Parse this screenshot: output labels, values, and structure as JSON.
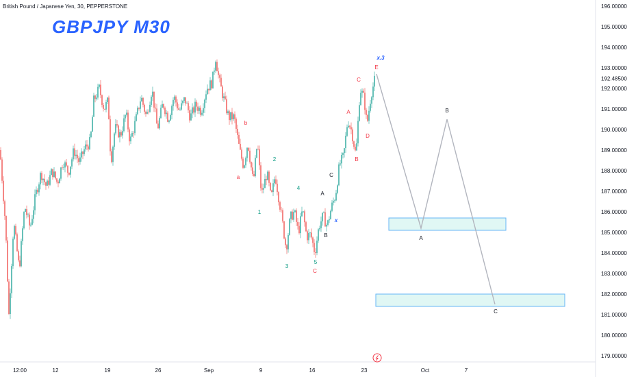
{
  "header": {
    "symbol_line": "British Pound / Japanese Yen, 30, PEPPERSTONE"
  },
  "title": "GBPJPY M30",
  "colors": {
    "up": "#26a69a",
    "down": "#ef5350",
    "projection": "#b2b5be",
    "zone_fill": "#e0f7f4",
    "zone_stroke": "#64b5f6",
    "label_red": "#f23645",
    "label_green": "#089981",
    "label_blue": "#2962ff",
    "label_black": "#131722"
  },
  "chart_data": {
    "type": "candlestick",
    "y_ticks": [
      "196.00000",
      "195.00000",
      "194.00000",
      "193.00000",
      "192.48500",
      "192.00000",
      "191.00000",
      "190.00000",
      "189.00000",
      "188.00000",
      "187.00000",
      "186.00000",
      "185.00000",
      "184.00000",
      "183.00000",
      "182.00000",
      "181.00000",
      "180.00000",
      "179.00000"
    ],
    "x_ticks": [
      "12:00",
      "12",
      "19",
      "26",
      "Sep",
      "9",
      "16",
      "23",
      "Oct",
      "7"
    ],
    "ylim": [
      178.8,
      196.2
    ],
    "price_path": [
      [
        0,
        189.0
      ],
      [
        8,
        185.4
      ],
      [
        13,
        181.0
      ],
      [
        20,
        185.5
      ],
      [
        28,
        183.2
      ],
      [
        36,
        186.3
      ],
      [
        44,
        185.2
      ],
      [
        52,
        186.8
      ],
      [
        60,
        187.9
      ],
      [
        68,
        187.2
      ],
      [
        76,
        188.0
      ],
      [
        84,
        187.4
      ],
      [
        92,
        188.5
      ],
      [
        100,
        187.9
      ],
      [
        108,
        189.0
      ],
      [
        116,
        188.4
      ],
      [
        124,
        189.1
      ],
      [
        132,
        189.4
      ],
      [
        137,
        191.4
      ],
      [
        145,
        192.0
      ],
      [
        152,
        191.0
      ],
      [
        158,
        191.4
      ],
      [
        162,
        188.4
      ],
      [
        168,
        190.1
      ],
      [
        176,
        189.7
      ],
      [
        184,
        190.8
      ],
      [
        190,
        189.4
      ],
      [
        198,
        190.4
      ],
      [
        206,
        191.6
      ],
      [
        214,
        190.6
      ],
      [
        222,
        192.0
      ],
      [
        230,
        190.0
      ],
      [
        238,
        191.3
      ],
      [
        246,
        190.5
      ],
      [
        254,
        191.6
      ],
      [
        262,
        190.9
      ],
      [
        270,
        191.5
      ],
      [
        278,
        190.6
      ],
      [
        286,
        191.2
      ],
      [
        294,
        190.9
      ],
      [
        302,
        192.0
      ],
      [
        310,
        192.3
      ],
      [
        315,
        193.5
      ],
      [
        320,
        192.4
      ],
      [
        326,
        191.6
      ],
      [
        334,
        190.6
      ],
      [
        342,
        190.6
      ],
      [
        350,
        189.0
      ],
      [
        356,
        188.2
      ],
      [
        362,
        189.4
      ],
      [
        370,
        187.4
      ],
      [
        376,
        189.4
      ],
      [
        382,
        186.8
      ],
      [
        390,
        187.9
      ],
      [
        396,
        186.6
      ],
      [
        402,
        187.8
      ],
      [
        410,
        186.1
      ],
      [
        418,
        184.2
      ],
      [
        424,
        185.7
      ],
      [
        430,
        186.0
      ],
      [
        436,
        185.0
      ],
      [
        442,
        186.1
      ],
      [
        448,
        184.8
      ],
      [
        454,
        184.9
      ],
      [
        460,
        184.0
      ],
      [
        466,
        185.3
      ],
      [
        472,
        185.8
      ],
      [
        478,
        185.3
      ],
      [
        484,
        186.2
      ],
      [
        490,
        186.8
      ],
      [
        496,
        188.3
      ],
      [
        502,
        188.7
      ],
      [
        508,
        190.5
      ],
      [
        514,
        189.9
      ],
      [
        520,
        188.7
      ],
      [
        526,
        192.0
      ],
      [
        532,
        191.5
      ],
      [
        536,
        190.2
      ],
      [
        542,
        191.7
      ],
      [
        548,
        192.5
      ]
    ],
    "projection": {
      "points": [
        [
          "E",
          192.7
        ],
        [
          "A",
          185.2
        ],
        [
          "B",
          190.5
        ],
        [
          "C",
          181.5
        ]
      ]
    },
    "zones": [
      {
        "from": 185.7,
        "to": 185.1
      },
      {
        "from": 182.0,
        "to": 181.4
      }
    ],
    "wave_labels": [
      {
        "text": "x.3",
        "color": "blue"
      },
      {
        "text": "E",
        "color": "red"
      },
      {
        "text": "C",
        "color": "red"
      },
      {
        "text": "A",
        "color": "red"
      },
      {
        "text": "D",
        "color": "red"
      },
      {
        "text": "B",
        "color": "red"
      },
      {
        "text": "b",
        "color": "red"
      },
      {
        "text": "a",
        "color": "red"
      },
      {
        "text": "C",
        "color": "red"
      },
      {
        "text": "2",
        "color": "green"
      },
      {
        "text": "4",
        "color": "green"
      },
      {
        "text": "1",
        "color": "green"
      },
      {
        "text": "3",
        "color": "green"
      },
      {
        "text": "5",
        "color": "green"
      },
      {
        "text": "C",
        "color": "black"
      },
      {
        "text": "A",
        "color": "black"
      },
      {
        "text": "B",
        "color": "black"
      },
      {
        "text": "x",
        "color": "blue"
      },
      {
        "text": "B",
        "color": "black"
      },
      {
        "text": "A",
        "color": "black"
      },
      {
        "text": "C",
        "color": "black"
      }
    ]
  }
}
